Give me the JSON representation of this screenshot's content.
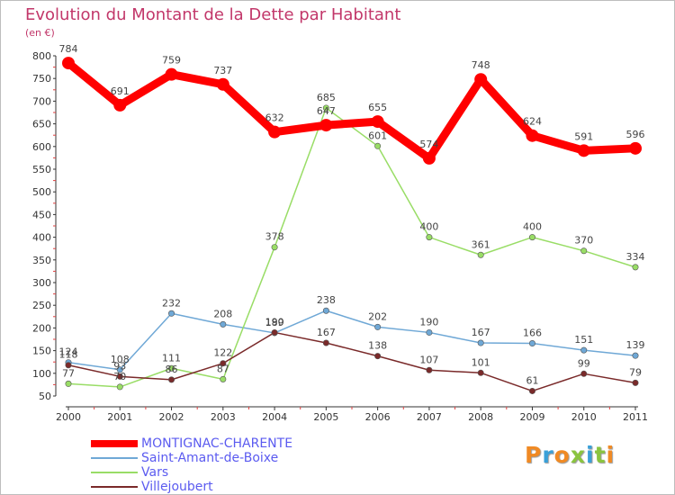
{
  "header": {
    "title": "Evolution du Montant de la Dette par Habitant",
    "subtitle": "(en €)"
  },
  "logo": {
    "text": "Proxiti",
    "colors": [
      "#f08a24",
      "#3aa0d8",
      "#f08a24",
      "#8ac43f",
      "#3aa0d8",
      "#8ac43f",
      "#f08a24"
    ]
  },
  "chart_data": {
    "type": "line",
    "x": [
      "2000",
      "2001",
      "2002",
      "2003",
      "2004",
      "2005",
      "2006",
      "2007",
      "2008",
      "2009",
      "2010",
      "2011"
    ],
    "ylim": [
      50,
      800
    ],
    "yticks": [
      50,
      100,
      150,
      200,
      250,
      300,
      350,
      400,
      450,
      500,
      550,
      600,
      650,
      700,
      750,
      800
    ],
    "grid": false,
    "legend_position": "bottom-left",
    "series": [
      {
        "name": "MONTIGNAC-CHARENTE",
        "color": "#ff0000",
        "emphasis": true,
        "values": [
          784,
          691,
          759,
          737,
          632,
          647,
          655,
          574,
          748,
          624,
          591,
          596
        ]
      },
      {
        "name": "Saint-Amant-de-Boixe",
        "color": "#6fa8d6",
        "values": [
          124,
          108,
          232,
          208,
          189,
          238,
          202,
          190,
          167,
          166,
          151,
          139
        ]
      },
      {
        "name": "Vars",
        "color": "#99dd66",
        "values": [
          77,
          70,
          111,
          87,
          378,
          685,
          601,
          400,
          361,
          400,
          370,
          334
        ]
      },
      {
        "name": "Villejoubert",
        "color": "#7a2a2a",
        "values": [
          118,
          93,
          86,
          122,
          190,
          167,
          138,
          107,
          101,
          61,
          99,
          79
        ]
      }
    ]
  }
}
